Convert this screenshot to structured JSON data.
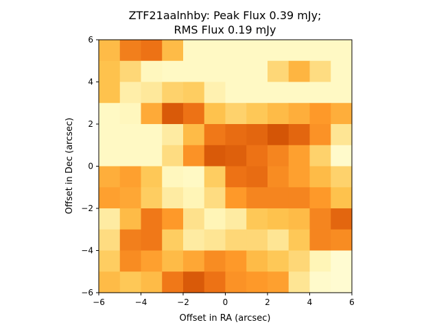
{
  "chart_data": {
    "type": "heatmap",
    "title_line1": "ZTF21aalnhby: Peak Flux 0.39 mJy;",
    "title_line2": "RMS Flux 0.19 mJy",
    "xlabel": "Offset in RA (arcsec)",
    "ylabel": "Offset in Dec (arcsec)",
    "xlim": [
      -6,
      6
    ],
    "ylim": [
      -6,
      6
    ],
    "xticks": [
      {
        "value": -6,
        "label": "−6"
      },
      {
        "value": -4,
        "label": "−4"
      },
      {
        "value": -2,
        "label": "−2"
      },
      {
        "value": 0,
        "label": "0"
      },
      {
        "value": 2,
        "label": "2"
      },
      {
        "value": 4,
        "label": "4"
      },
      {
        "value": 6,
        "label": "6"
      }
    ],
    "yticks": [
      {
        "value": -6,
        "label": "−6"
      },
      {
        "value": -4,
        "label": "−4"
      },
      {
        "value": -2,
        "label": "−2"
      },
      {
        "value": 0,
        "label": "0"
      },
      {
        "value": 2,
        "label": "2"
      },
      {
        "value": 4,
        "label": "4"
      },
      {
        "value": 6,
        "label": "6"
      }
    ],
    "colormap": "YlOrBr",
    "grid_size": [
      12,
      12
    ],
    "rows_top_to_bottom": [
      [
        0.4,
        0.58,
        0.62,
        0.4,
        0.1,
        0.1,
        0.1,
        0.1,
        0.1,
        0.1,
        0.1,
        0.1
      ],
      [
        0.38,
        0.3,
        0.12,
        0.1,
        0.1,
        0.1,
        0.1,
        0.1,
        0.3,
        0.42,
        0.28,
        0.1
      ],
      [
        0.38,
        0.18,
        0.22,
        0.32,
        0.34,
        0.16,
        0.1,
        0.1,
        0.1,
        0.1,
        0.1,
        0.1
      ],
      [
        0.1,
        0.12,
        0.45,
        0.7,
        0.62,
        0.38,
        0.32,
        0.36,
        0.4,
        0.44,
        0.5,
        0.44
      ],
      [
        0.1,
        0.1,
        0.1,
        0.2,
        0.4,
        0.6,
        0.64,
        0.66,
        0.72,
        0.66,
        0.52,
        0.24
      ],
      [
        0.1,
        0.1,
        0.1,
        0.28,
        0.52,
        0.7,
        0.68,
        0.62,
        0.56,
        0.48,
        0.32,
        0.08
      ],
      [
        0.44,
        0.48,
        0.36,
        0.12,
        0.1,
        0.34,
        0.62,
        0.64,
        0.54,
        0.48,
        0.4,
        0.32
      ],
      [
        0.48,
        0.46,
        0.34,
        0.2,
        0.14,
        0.28,
        0.5,
        0.56,
        0.56,
        0.56,
        0.5,
        0.38
      ],
      [
        0.2,
        0.4,
        0.6,
        0.5,
        0.26,
        0.14,
        0.2,
        0.36,
        0.38,
        0.4,
        0.56,
        0.66
      ],
      [
        0.28,
        0.58,
        0.6,
        0.34,
        0.2,
        0.24,
        0.3,
        0.3,
        0.24,
        0.36,
        0.56,
        0.54
      ],
      [
        0.34,
        0.54,
        0.48,
        0.4,
        0.46,
        0.54,
        0.5,
        0.4,
        0.36,
        0.3,
        0.14,
        0.06
      ],
      [
        0.4,
        0.36,
        0.4,
        0.6,
        0.7,
        0.62,
        0.52,
        0.5,
        0.48,
        0.24,
        0.08,
        0.06
      ]
    ]
  }
}
